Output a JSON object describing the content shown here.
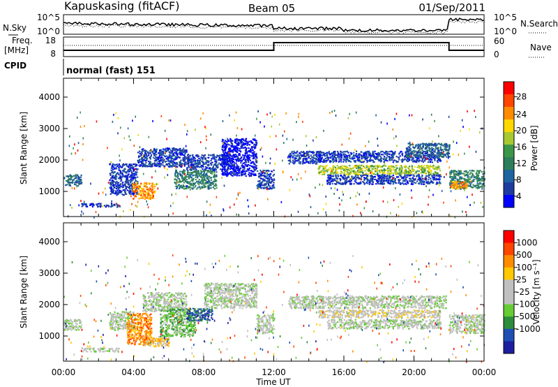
{
  "header": {
    "station": "Kapuskasing (fitACF)",
    "beam": "Beam 05",
    "date": "01/Sep/2011"
  },
  "noise_panel": {
    "left_label": "N.Sky",
    "right_label": "N.Search",
    "left_ticks": [
      "10^5",
      "10^0"
    ],
    "right_ticks": [
      "10^5",
      "10^0"
    ]
  },
  "freq_panel": {
    "left_label_1": "Freq.",
    "left_label_2": "[MHz]",
    "right_label": "Nave",
    "left_ticks": [
      "18",
      "8"
    ],
    "right_ticks": [
      "60",
      "0"
    ]
  },
  "cpid": {
    "label": "CPID",
    "value": "normal (fast) 151"
  },
  "colors": {
    "power": [
      "#0000ff",
      "#1e3ca0",
      "#1e64a0",
      "#2e7d5a",
      "#3c9648",
      "#a8c832",
      "#ffd700",
      "#ff8c00",
      "#ff4500",
      "#ff0000"
    ],
    "velocity": [
      "#1e1ea0",
      "#1e50b4",
      "#2b8c3c",
      "#66cc33",
      "#c0c0c0",
      "#c0c0c0",
      "#ffc800",
      "#ff8c00",
      "#ff4500",
      "#ff0000"
    ]
  },
  "chart_data": [
    {
      "type": "heatmap",
      "name": "power",
      "xlabel": "Time UT",
      "ylabel": "Slant Range [km]",
      "x_ticks": [
        "00:00",
        "04:00",
        "08:00",
        "12:00",
        "16:00",
        "20:00",
        "00:00"
      ],
      "xlim_hours": [
        0,
        24
      ],
      "ylim": [
        200,
        4600
      ],
      "y_ticks": [
        1000,
        2000,
        3000,
        4000
      ],
      "colorbar": {
        "label": "Power [dB]",
        "ticks": [
          "4",
          "8",
          "12",
          "16",
          "20",
          "24",
          "28"
        ],
        "range": [
          0,
          30
        ]
      },
      "regions": [
        {
          "t0": 0.0,
          "t1": 1.0,
          "r0": 1200,
          "r1": 1550,
          "level": 2
        },
        {
          "t0": 1.0,
          "t1": 3.2,
          "r0": 520,
          "r1": 640,
          "level": 1
        },
        {
          "t0": 2.6,
          "t1": 4.2,
          "r0": 900,
          "r1": 1900,
          "level": 1
        },
        {
          "t0": 3.9,
          "t1": 5.2,
          "r0": 780,
          "r1": 1300,
          "level": 7
        },
        {
          "t0": 4.2,
          "t1": 7.0,
          "r0": 1800,
          "r1": 2400,
          "level": 1
        },
        {
          "t0": 6.3,
          "t1": 8.7,
          "r0": 1100,
          "r1": 1700,
          "level": 3
        },
        {
          "t0": 7.0,
          "t1": 9.4,
          "r0": 1700,
          "r1": 2200,
          "level": 1
        },
        {
          "t0": 9.0,
          "t1": 11.0,
          "r0": 1500,
          "r1": 2700,
          "level": 0
        },
        {
          "t0": 11.0,
          "t1": 12.0,
          "r0": 1100,
          "r1": 1700,
          "level": 1
        },
        {
          "t0": 12.8,
          "t1": 14.6,
          "r0": 1900,
          "r1": 2300,
          "level": 1
        },
        {
          "t0": 14.5,
          "t1": 21.5,
          "r0": 1950,
          "r1": 2300,
          "level": 1
        },
        {
          "t0": 14.5,
          "t1": 21.5,
          "r0": 1550,
          "r1": 1850,
          "level": 5
        },
        {
          "t0": 15.0,
          "t1": 21.5,
          "r0": 1250,
          "r1": 1550,
          "level": 1
        },
        {
          "t0": 19.5,
          "t1": 22.0,
          "r0": 2100,
          "r1": 2550,
          "level": 2
        },
        {
          "t0": 22.0,
          "t1": 24.0,
          "r0": 1100,
          "r1": 1700,
          "level": 3
        },
        {
          "t0": 22.0,
          "t1": 23.0,
          "r0": 1100,
          "r1": 1350,
          "level": 7
        }
      ]
    },
    {
      "type": "heatmap",
      "name": "velocity",
      "xlabel": "Time UT",
      "ylabel": "Slant Range [km]",
      "x_ticks": [
        "00:00",
        "04:00",
        "08:00",
        "12:00",
        "16:00",
        "20:00",
        "00:00"
      ],
      "xlim_hours": [
        0,
        24
      ],
      "ylim": [
        200,
        4600
      ],
      "y_ticks": [
        1000,
        2000,
        3000,
        4000
      ],
      "colorbar": {
        "label": "Velocity [m s⁻¹]",
        "ticks": [
          "1000",
          "500",
          "100",
          "25",
          "-25",
          "-100",
          "-500",
          "-1000"
        ],
        "range": [
          -1000,
          1000
        ]
      },
      "regions": [
        {
          "t0": 0.0,
          "t1": 1.0,
          "r0": 1200,
          "r1": 1550,
          "level": 4
        },
        {
          "t0": 1.0,
          "t1": 3.2,
          "r0": 520,
          "r1": 640,
          "level": 4
        },
        {
          "t0": 2.6,
          "t1": 4.0,
          "r0": 1200,
          "r1": 1800,
          "level": 4
        },
        {
          "t0": 3.6,
          "t1": 5.0,
          "r0": 750,
          "r1": 1750,
          "level": 7
        },
        {
          "t0": 4.5,
          "t1": 6.0,
          "r0": 700,
          "r1": 1000,
          "level": 6
        },
        {
          "t0": 4.5,
          "t1": 7.0,
          "r0": 1800,
          "r1": 2400,
          "level": 4
        },
        {
          "t0": 5.5,
          "t1": 7.5,
          "r0": 1000,
          "r1": 1900,
          "level": 3
        },
        {
          "t0": 7.0,
          "t1": 8.5,
          "r0": 1500,
          "r1": 1900,
          "level": 1
        },
        {
          "t0": 8.0,
          "t1": 11.0,
          "r0": 1900,
          "r1": 2700,
          "level": 4
        },
        {
          "t0": 11.0,
          "t1": 12.0,
          "r0": 1100,
          "r1": 1700,
          "level": 4
        },
        {
          "t0": 12.8,
          "t1": 21.8,
          "r0": 1900,
          "r1": 2300,
          "level": 4
        },
        {
          "t0": 14.5,
          "t1": 21.5,
          "r0": 1600,
          "r1": 1850,
          "level": 5
        },
        {
          "t0": 15.0,
          "t1": 21.5,
          "r0": 1250,
          "r1": 1550,
          "level": 4
        },
        {
          "t0": 22.0,
          "t1": 24.0,
          "r0": 1100,
          "r1": 1700,
          "level": 4
        }
      ]
    }
  ]
}
